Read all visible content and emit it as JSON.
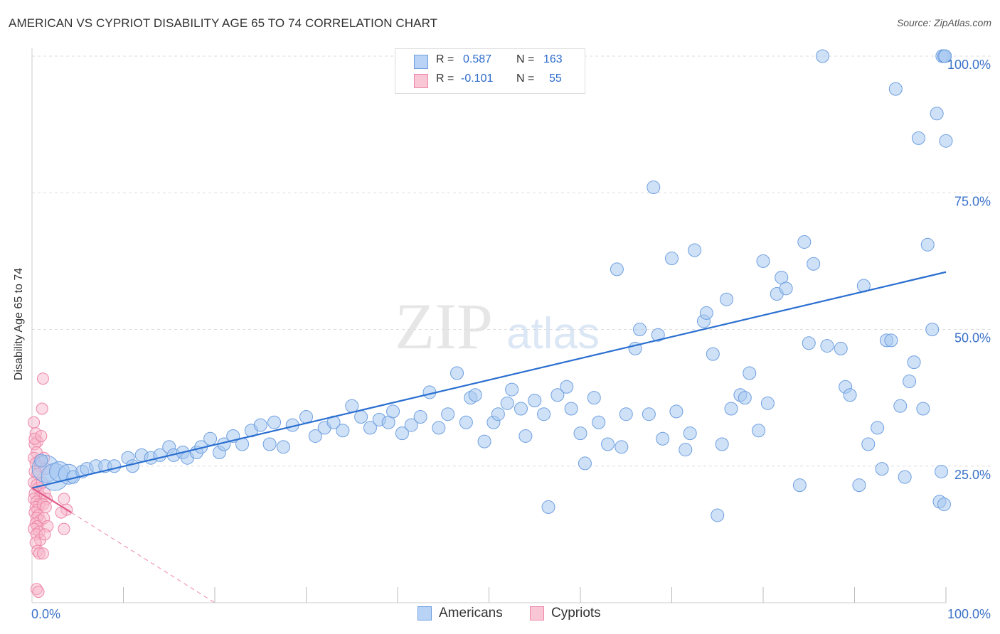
{
  "title": "AMERICAN VS CYPRIOT DISABILITY AGE 65 TO 74 CORRELATION CHART",
  "source": "Source: ZipAtlas.com",
  "watermark": {
    "zip": "ZIP",
    "atlas": "atlas"
  },
  "legend": {
    "rows": [
      {
        "r_label": "R =",
        "r_value": "0.587",
        "n_label": "N =",
        "n_value": "163"
      },
      {
        "r_label": "R =",
        "r_value": "-0.101",
        "n_label": "N =",
        "n_value": "55"
      }
    ]
  },
  "colors": {
    "americans_fill": "#a8c8f0",
    "americans_stroke": "#6e9fe0",
    "americans_line": "#2a6fd0",
    "cypriots_fill": "#f7b8cc",
    "cypriots_stroke": "#ee86a8",
    "cypriots_line": "#e05a8a",
    "tick_label": "#3a72c8",
    "grid": "#dddddd"
  },
  "chart_data": {
    "type": "scatter",
    "title": "AMERICAN VS CYPRIOT DISABILITY AGE 65 TO 74 CORRELATION CHART",
    "xlabel": "",
    "ylabel": "Disability Age 65 to 74",
    "xlim": [
      0,
      100
    ],
    "ylim": [
      0,
      100
    ],
    "x_tick_labels": [
      "0.0%",
      "100.0%"
    ],
    "y_ticks": [
      25,
      50,
      75,
      100
    ],
    "y_tick_labels": [
      "25.0%",
      "50.0%",
      "75.0%",
      "100.0%"
    ],
    "grid": "horizontal dashed",
    "legend_position": "top-center",
    "series": [
      {
        "name": "Americans",
        "R": 0.587,
        "N": 163,
        "trend": {
          "x": [
            0,
            100
          ],
          "y": [
            21.0,
            60.5
          ]
        },
        "points": [
          {
            "x": 1.5,
            "y": 24.5,
            "s": 3
          },
          {
            "x": 2.5,
            "y": 23.0,
            "s": 3
          },
          {
            "x": 3.0,
            "y": 24.0,
            "s": 2
          },
          {
            "x": 4.0,
            "y": 23.5,
            "s": 2
          },
          {
            "x": 4.5,
            "y": 23.0,
            "s": 1
          },
          {
            "x": 5.5,
            "y": 24.0,
            "s": 1
          },
          {
            "x": 6.0,
            "y": 24.5,
            "s": 1
          },
          {
            "x": 1.0,
            "y": 26.0,
            "s": 1
          },
          {
            "x": 7.0,
            "y": 25.0,
            "s": 1
          },
          {
            "x": 8.0,
            "y": 25.0,
            "s": 1
          },
          {
            "x": 9.0,
            "y": 25.0,
            "s": 1
          },
          {
            "x": 10.5,
            "y": 26.5,
            "s": 1
          },
          {
            "x": 11.0,
            "y": 25.0,
            "s": 1
          },
          {
            "x": 12.0,
            "y": 27.0,
            "s": 1
          },
          {
            "x": 13.0,
            "y": 26.5,
            "s": 1
          },
          {
            "x": 14.0,
            "y": 27.0,
            "s": 1
          },
          {
            "x": 15.0,
            "y": 28.5,
            "s": 1
          },
          {
            "x": 15.5,
            "y": 27.0,
            "s": 1
          },
          {
            "x": 16.5,
            "y": 27.5,
            "s": 1
          },
          {
            "x": 17.0,
            "y": 26.5,
            "s": 1
          },
          {
            "x": 18.0,
            "y": 27.5,
            "s": 1
          },
          {
            "x": 18.5,
            "y": 28.5,
            "s": 1
          },
          {
            "x": 19.5,
            "y": 30.0,
            "s": 1
          },
          {
            "x": 20.5,
            "y": 27.5,
            "s": 1
          },
          {
            "x": 21.0,
            "y": 29.0,
            "s": 1
          },
          {
            "x": 22.0,
            "y": 30.5,
            "s": 1
          },
          {
            "x": 23.0,
            "y": 29.0,
            "s": 1
          },
          {
            "x": 24.0,
            "y": 31.5,
            "s": 1
          },
          {
            "x": 25.0,
            "y": 32.5,
            "s": 1
          },
          {
            "x": 26.0,
            "y": 29.0,
            "s": 1
          },
          {
            "x": 26.5,
            "y": 33.0,
            "s": 1
          },
          {
            "x": 27.5,
            "y": 28.5,
            "s": 1
          },
          {
            "x": 28.5,
            "y": 32.5,
            "s": 1
          },
          {
            "x": 30.0,
            "y": 34.0,
            "s": 1
          },
          {
            "x": 31.0,
            "y": 30.5,
            "s": 1
          },
          {
            "x": 32.0,
            "y": 32.0,
            "s": 1
          },
          {
            "x": 33.0,
            "y": 33.0,
            "s": 1
          },
          {
            "x": 34.0,
            "y": 31.5,
            "s": 1
          },
          {
            "x": 35.0,
            "y": 36.0,
            "s": 1
          },
          {
            "x": 36.0,
            "y": 34.0,
            "s": 1
          },
          {
            "x": 37.0,
            "y": 32.0,
            "s": 1
          },
          {
            "x": 38.0,
            "y": 33.5,
            "s": 1
          },
          {
            "x": 39.0,
            "y": 33.0,
            "s": 1
          },
          {
            "x": 39.5,
            "y": 35.0,
            "s": 1
          },
          {
            "x": 40.5,
            "y": 31.0,
            "s": 1
          },
          {
            "x": 41.5,
            "y": 32.5,
            "s": 1
          },
          {
            "x": 42.5,
            "y": 34.0,
            "s": 1
          },
          {
            "x": 43.5,
            "y": 38.5,
            "s": 1
          },
          {
            "x": 44.5,
            "y": 32.0,
            "s": 1
          },
          {
            "x": 45.5,
            "y": 34.5,
            "s": 1
          },
          {
            "x": 46.5,
            "y": 42.0,
            "s": 1
          },
          {
            "x": 47.5,
            "y": 33.0,
            "s": 1
          },
          {
            "x": 48.0,
            "y": 37.5,
            "s": 1
          },
          {
            "x": 48.5,
            "y": 38.0,
            "s": 1
          },
          {
            "x": 49.5,
            "y": 29.5,
            "s": 1
          },
          {
            "x": 50.5,
            "y": 33.0,
            "s": 1
          },
          {
            "x": 51.0,
            "y": 34.5,
            "s": 1
          },
          {
            "x": 52.0,
            "y": 36.5,
            "s": 1
          },
          {
            "x": 52.5,
            "y": 39.0,
            "s": 1
          },
          {
            "x": 53.5,
            "y": 35.5,
            "s": 1
          },
          {
            "x": 54.0,
            "y": 30.5,
            "s": 1
          },
          {
            "x": 55.0,
            "y": 37.0,
            "s": 1
          },
          {
            "x": 56.0,
            "y": 34.5,
            "s": 1
          },
          {
            "x": 56.5,
            "y": 17.5,
            "s": 1
          },
          {
            "x": 57.5,
            "y": 38.0,
            "s": 1
          },
          {
            "x": 58.5,
            "y": 39.5,
            "s": 1
          },
          {
            "x": 59.0,
            "y": 35.5,
            "s": 1
          },
          {
            "x": 60.0,
            "y": 31.0,
            "s": 1
          },
          {
            "x": 60.5,
            "y": 25.5,
            "s": 1
          },
          {
            "x": 61.5,
            "y": 37.5,
            "s": 1
          },
          {
            "x": 62.0,
            "y": 33.0,
            "s": 1
          },
          {
            "x": 63.0,
            "y": 29.0,
            "s": 1
          },
          {
            "x": 64.0,
            "y": 61.0,
            "s": 1
          },
          {
            "x": 64.5,
            "y": 28.5,
            "s": 1
          },
          {
            "x": 65.0,
            "y": 34.5,
            "s": 1
          },
          {
            "x": 66.0,
            "y": 46.5,
            "s": 1
          },
          {
            "x": 66.5,
            "y": 50.0,
            "s": 1
          },
          {
            "x": 67.5,
            "y": 34.5,
            "s": 1
          },
          {
            "x": 68.0,
            "y": 76.0,
            "s": 1
          },
          {
            "x": 68.5,
            "y": 49.0,
            "s": 1
          },
          {
            "x": 69.0,
            "y": 30.0,
            "s": 1
          },
          {
            "x": 70.0,
            "y": 63.0,
            "s": 1
          },
          {
            "x": 70.5,
            "y": 35.0,
            "s": 1
          },
          {
            "x": 71.5,
            "y": 28.0,
            "s": 1
          },
          {
            "x": 72.0,
            "y": 31.0,
            "s": 1
          },
          {
            "x": 72.5,
            "y": 64.5,
            "s": 1
          },
          {
            "x": 73.5,
            "y": 51.5,
            "s": 1
          },
          {
            "x": 73.8,
            "y": 53.0,
            "s": 1
          },
          {
            "x": 74.5,
            "y": 45.5,
            "s": 1
          },
          {
            "x": 75.0,
            "y": 16.0,
            "s": 1
          },
          {
            "x": 75.5,
            "y": 29.0,
            "s": 1
          },
          {
            "x": 76.0,
            "y": 55.5,
            "s": 1
          },
          {
            "x": 76.5,
            "y": 35.5,
            "s": 1
          },
          {
            "x": 77.5,
            "y": 38.0,
            "s": 1
          },
          {
            "x": 78.0,
            "y": 37.5,
            "s": 1
          },
          {
            "x": 78.5,
            "y": 42.0,
            "s": 1
          },
          {
            "x": 79.5,
            "y": 31.5,
            "s": 1
          },
          {
            "x": 80.0,
            "y": 62.5,
            "s": 1
          },
          {
            "x": 80.5,
            "y": 36.5,
            "s": 1
          },
          {
            "x": 81.5,
            "y": 56.5,
            "s": 1
          },
          {
            "x": 82.0,
            "y": 59.5,
            "s": 1
          },
          {
            "x": 82.5,
            "y": 57.5,
            "s": 1
          },
          {
            "x": 84.0,
            "y": 21.5,
            "s": 1
          },
          {
            "x": 84.5,
            "y": 66.0,
            "s": 1
          },
          {
            "x": 85.0,
            "y": 47.5,
            "s": 1
          },
          {
            "x": 85.5,
            "y": 62.0,
            "s": 1
          },
          {
            "x": 86.5,
            "y": 100.0,
            "s": 1
          },
          {
            "x": 87.0,
            "y": 47.0,
            "s": 1
          },
          {
            "x": 88.5,
            "y": 46.5,
            "s": 1
          },
          {
            "x": 89.0,
            "y": 39.5,
            "s": 1
          },
          {
            "x": 89.5,
            "y": 38.0,
            "s": 1
          },
          {
            "x": 90.5,
            "y": 21.5,
            "s": 1
          },
          {
            "x": 91.0,
            "y": 58.0,
            "s": 1
          },
          {
            "x": 91.5,
            "y": 29.0,
            "s": 1
          },
          {
            "x": 92.5,
            "y": 32.0,
            "s": 1
          },
          {
            "x": 93.0,
            "y": 24.5,
            "s": 1
          },
          {
            "x": 93.5,
            "y": 48.0,
            "s": 1
          },
          {
            "x": 94.0,
            "y": 48.0,
            "s": 1
          },
          {
            "x": 94.5,
            "y": 94.0,
            "s": 1
          },
          {
            "x": 95.0,
            "y": 36.0,
            "s": 1
          },
          {
            "x": 95.5,
            "y": 23.0,
            "s": 1
          },
          {
            "x": 96.0,
            "y": 40.5,
            "s": 1
          },
          {
            "x": 96.5,
            "y": 44.0,
            "s": 1
          },
          {
            "x": 97.0,
            "y": 85.0,
            "s": 1
          },
          {
            "x": 97.5,
            "y": 35.5,
            "s": 1
          },
          {
            "x": 98.0,
            "y": 65.5,
            "s": 1
          },
          {
            "x": 98.5,
            "y": 50.0,
            "s": 1
          },
          {
            "x": 99.0,
            "y": 89.5,
            "s": 1
          },
          {
            "x": 99.3,
            "y": 18.5,
            "s": 1
          },
          {
            "x": 99.5,
            "y": 24.0,
            "s": 1
          },
          {
            "x": 99.6,
            "y": 100.0,
            "s": 1
          },
          {
            "x": 99.8,
            "y": 100.0,
            "s": 1
          },
          {
            "x": 99.8,
            "y": 18.0,
            "s": 1
          },
          {
            "x": 99.9,
            "y": 100.0,
            "s": 1
          },
          {
            "x": 100.0,
            "y": 84.5,
            "s": 1
          }
        ]
      },
      {
        "name": "Cypriots",
        "R": -0.101,
        "N": 55,
        "trend": {
          "x": [
            0,
            4.3
          ],
          "y": [
            21.0,
            16.5
          ]
        },
        "trend_extension": {
          "x": [
            4.3,
            20
          ],
          "y": [
            16.5,
            0
          ]
        },
        "points": [
          {
            "x": 0.2,
            "y": 33.0
          },
          {
            "x": 0.4,
            "y": 31.0
          },
          {
            "x": 0.6,
            "y": 29.5
          },
          {
            "x": 0.3,
            "y": 29.0
          },
          {
            "x": 0.5,
            "y": 27.5
          },
          {
            "x": 0.2,
            "y": 26.5
          },
          {
            "x": 0.8,
            "y": 26.0
          },
          {
            "x": 0.4,
            "y": 25.5
          },
          {
            "x": 0.9,
            "y": 25.0
          },
          {
            "x": 0.3,
            "y": 24.0
          },
          {
            "x": 0.6,
            "y": 23.5
          },
          {
            "x": 0.2,
            "y": 22.0
          },
          {
            "x": 0.5,
            "y": 21.5
          },
          {
            "x": 0.7,
            "y": 21.0
          },
          {
            "x": 0.3,
            "y": 20.0
          },
          {
            "x": 0.9,
            "y": 19.5
          },
          {
            "x": 0.2,
            "y": 19.0
          },
          {
            "x": 0.5,
            "y": 18.5
          },
          {
            "x": 0.8,
            "y": 18.0
          },
          {
            "x": 0.4,
            "y": 17.5
          },
          {
            "x": 0.6,
            "y": 17.0
          },
          {
            "x": 0.3,
            "y": 16.5
          },
          {
            "x": 0.7,
            "y": 16.0
          },
          {
            "x": 0.5,
            "y": 15.5
          },
          {
            "x": 0.9,
            "y": 15.0
          },
          {
            "x": 0.4,
            "y": 14.5
          },
          {
            "x": 0.6,
            "y": 14.0
          },
          {
            "x": 0.2,
            "y": 13.5
          },
          {
            "x": 0.8,
            "y": 13.0
          },
          {
            "x": 0.5,
            "y": 12.5
          },
          {
            "x": 0.9,
            "y": 11.5
          },
          {
            "x": 0.4,
            "y": 11.0
          },
          {
            "x": 0.6,
            "y": 9.5
          },
          {
            "x": 0.8,
            "y": 9.0
          },
          {
            "x": 0.5,
            "y": 2.5
          },
          {
            "x": 0.7,
            "y": 2.0
          },
          {
            "x": 1.2,
            "y": 41.0
          },
          {
            "x": 1.1,
            "y": 35.5
          },
          {
            "x": 1.3,
            "y": 26.5
          },
          {
            "x": 1.5,
            "y": 24.5
          },
          {
            "x": 1.1,
            "y": 22.0
          },
          {
            "x": 1.4,
            "y": 20.0
          },
          {
            "x": 1.6,
            "y": 19.0
          },
          {
            "x": 1.2,
            "y": 18.0
          },
          {
            "x": 1.5,
            "y": 17.5
          },
          {
            "x": 1.3,
            "y": 15.5
          },
          {
            "x": 1.7,
            "y": 14.0
          },
          {
            "x": 1.4,
            "y": 12.5
          },
          {
            "x": 1.2,
            "y": 9.0
          },
          {
            "x": 3.5,
            "y": 19.0
          },
          {
            "x": 3.8,
            "y": 17.0
          },
          {
            "x": 3.5,
            "y": 13.5
          },
          {
            "x": 3.2,
            "y": 16.5
          },
          {
            "x": 0.3,
            "y": 30.0
          },
          {
            "x": 1.0,
            "y": 30.5
          }
        ]
      }
    ]
  },
  "bottom_legend": [
    {
      "label": "Americans"
    },
    {
      "label": "Cypriots"
    }
  ]
}
